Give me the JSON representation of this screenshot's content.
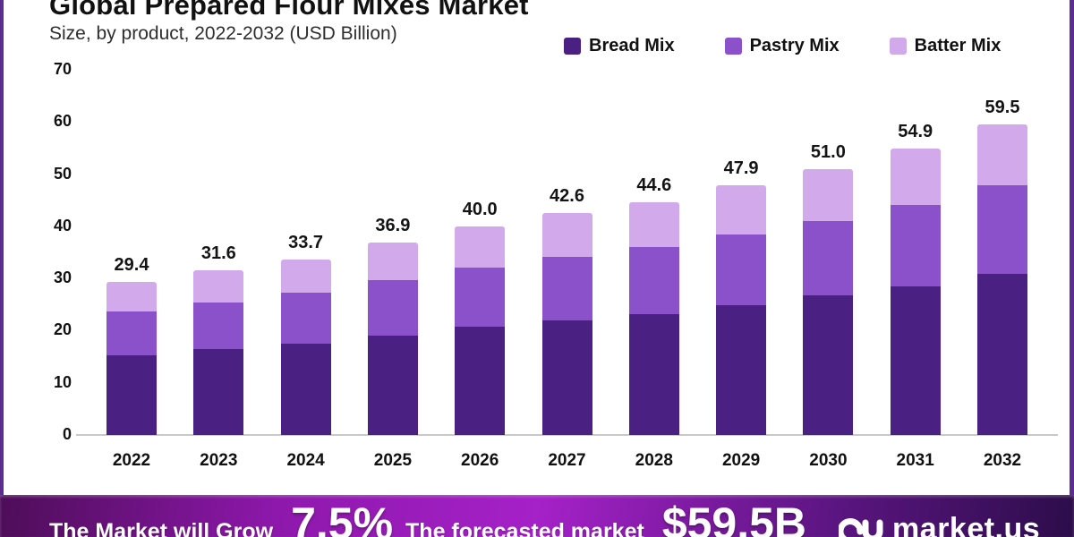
{
  "frame": {
    "border_color": "#5b2d90"
  },
  "header": {
    "title": "Global Prepared Flour Mixes Market",
    "subtitle": "Size, by product, 2022-2032 (USD Billion)"
  },
  "legend": [
    {
      "label": "Bread Mix",
      "color": "#4a2183"
    },
    {
      "label": "Pastry Mix",
      "color": "#8b51cb"
    },
    {
      "label": "Batter Mix",
      "color": "#d2a9eb"
    }
  ],
  "chart_data": {
    "type": "bar",
    "stacked": true,
    "title": "Global Prepared Flour Mixes Market",
    "subtitle": "Size, by product, 2022-2032 (USD Billion)",
    "xlabel": "",
    "ylabel": "",
    "units": "USD Billion",
    "categories": [
      "2022",
      "2023",
      "2024",
      "2025",
      "2026",
      "2027",
      "2028",
      "2029",
      "2030",
      "2031",
      "2032"
    ],
    "series": [
      {
        "name": "Bread Mix",
        "color": "#4a2183",
        "values": [
          15.2,
          16.4,
          17.5,
          19.0,
          20.8,
          22.0,
          23.2,
          24.9,
          26.7,
          28.5,
          30.9
        ]
      },
      {
        "name": "Pastry Mix",
        "color": "#8b51cb",
        "values": [
          8.5,
          9.0,
          9.8,
          10.7,
          11.3,
          12.1,
          12.8,
          13.5,
          14.3,
          15.6,
          17.0
        ]
      },
      {
        "name": "Batter Mix",
        "color": "#d2a9eb",
        "values": [
          5.7,
          6.2,
          6.4,
          7.2,
          7.9,
          8.5,
          8.6,
          9.5,
          10.0,
          10.8,
          11.6
        ]
      }
    ],
    "totals": [
      29.4,
      31.6,
      33.7,
      36.9,
      40.0,
      42.6,
      44.6,
      47.9,
      51.0,
      54.9,
      59.5
    ],
    "total_labels": [
      "29.4",
      "31.6",
      "33.7",
      "36.9",
      "40.0",
      "42.6",
      "44.6",
      "47.9",
      "51.0",
      "54.9",
      "59.5"
    ],
    "ylim": [
      0,
      70
    ],
    "yticks": [
      0,
      10,
      20,
      30,
      40,
      50,
      60,
      70
    ],
    "grid": false,
    "legend_position": "top-right"
  },
  "footer": {
    "growth_text": "The Market will Grow",
    "growth_value": "7.5%",
    "forecast_text": "The forecasted market",
    "forecast_value": "$59.5B",
    "brand": "market.us"
  }
}
